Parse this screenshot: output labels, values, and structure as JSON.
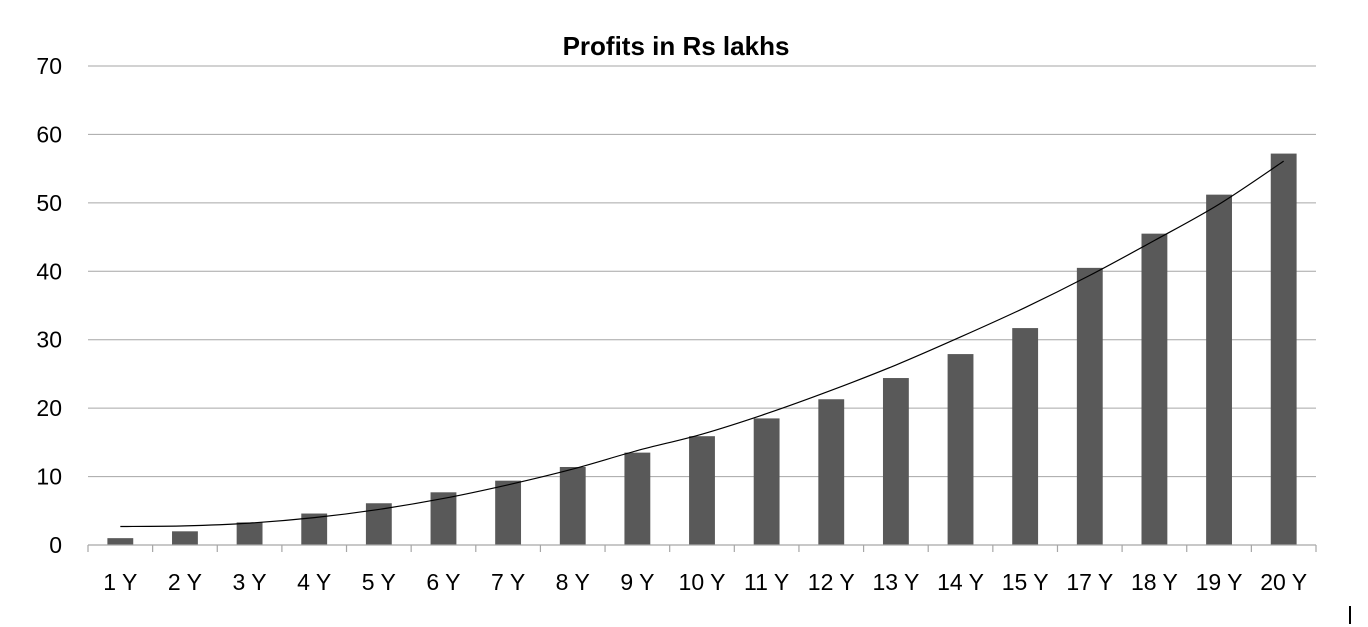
{
  "chart_data": {
    "type": "bar",
    "title": "Profits in Rs lakhs",
    "xlabel": "",
    "ylabel": "",
    "ylim": [
      0,
      70
    ],
    "yticks": [
      0,
      10,
      20,
      30,
      40,
      50,
      60,
      70
    ],
    "grid": true,
    "legend": "none",
    "categories": [
      "1 Y",
      "2 Y",
      "3 Y",
      "4 Y",
      "5 Y",
      "6 Y",
      "7 Y",
      "8 Y",
      "9 Y",
      "10 Y",
      "11 Y",
      "12 Y",
      "13 Y",
      "14 Y",
      "15 Y",
      "17 Y",
      "18 Y",
      "19 Y",
      "20 Y"
    ],
    "series": [
      {
        "values": [
          1,
          2,
          3.3,
          4.6,
          6.1,
          7.7,
          9.4,
          11.4,
          13.5,
          15.9,
          18.5,
          21.3,
          24.4,
          27.9,
          31.7,
          40.5,
          45.5,
          51.2,
          57.2
        ],
        "color": "#595959"
      }
    ],
    "trendline": {
      "type": "polynomial",
      "color": "#000000",
      "values": [
        2.7,
        2.8,
        3.2,
        4.0,
        5.2,
        6.8,
        8.8,
        11.1,
        13.8,
        16.2,
        19.2,
        22.6,
        26.3,
        30.4,
        34.7,
        39.4,
        44.5,
        49.8,
        56.1
      ]
    }
  }
}
